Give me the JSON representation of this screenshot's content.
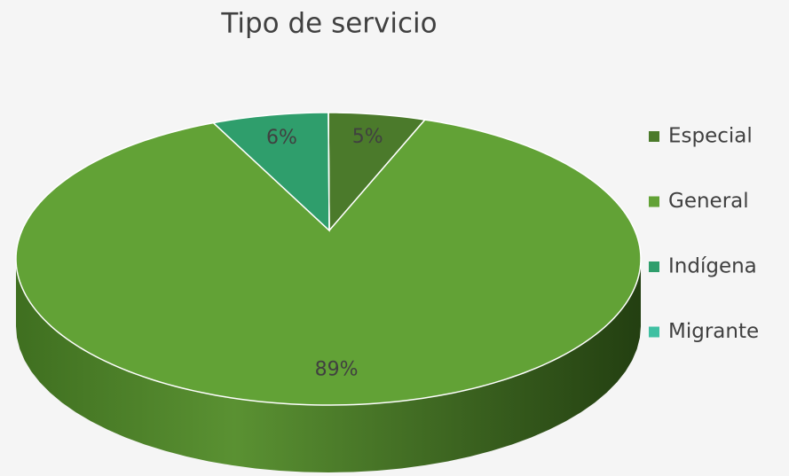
{
  "chart_data": {
    "type": "pie",
    "title": "Tipo de servicio",
    "categories": [
      "Especial",
      "General",
      "Indígena",
      "Migrante"
    ],
    "values": [
      5,
      89,
      6,
      0
    ],
    "value_labels": [
      "5%",
      "89%",
      "6%",
      null
    ],
    "colors": [
      "#4b7a2b",
      "#62a236",
      "#2f9e6c",
      "#3fc0a2"
    ],
    "legend": "right"
  }
}
